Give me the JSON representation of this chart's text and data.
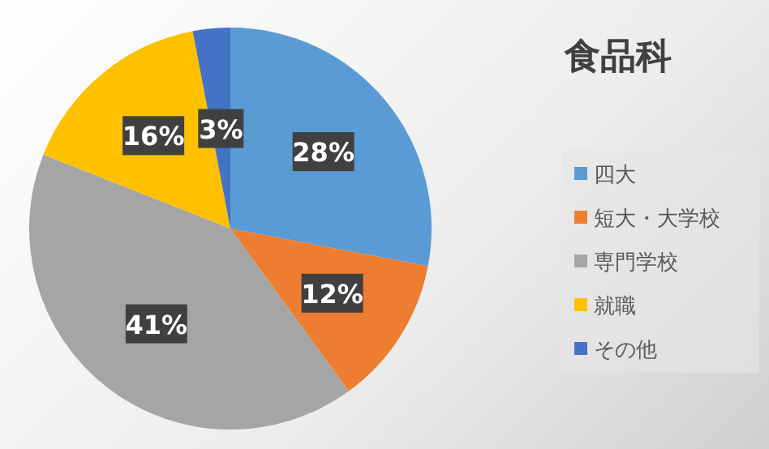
{
  "chart_data": {
    "type": "pie",
    "title": "食品科",
    "categories": [
      "四大",
      "短大・大学校",
      "専門学校",
      "就職",
      "その他"
    ],
    "values": [
      28,
      12,
      41,
      16,
      3
    ],
    "colors": [
      "#5b9bd5",
      "#ed7d31",
      "#a5a5a5",
      "#ffc000",
      "#4472c4"
    ],
    "value_labels": [
      "28%",
      "12%",
      "41%",
      "16%",
      "3%"
    ],
    "legend": "right"
  }
}
